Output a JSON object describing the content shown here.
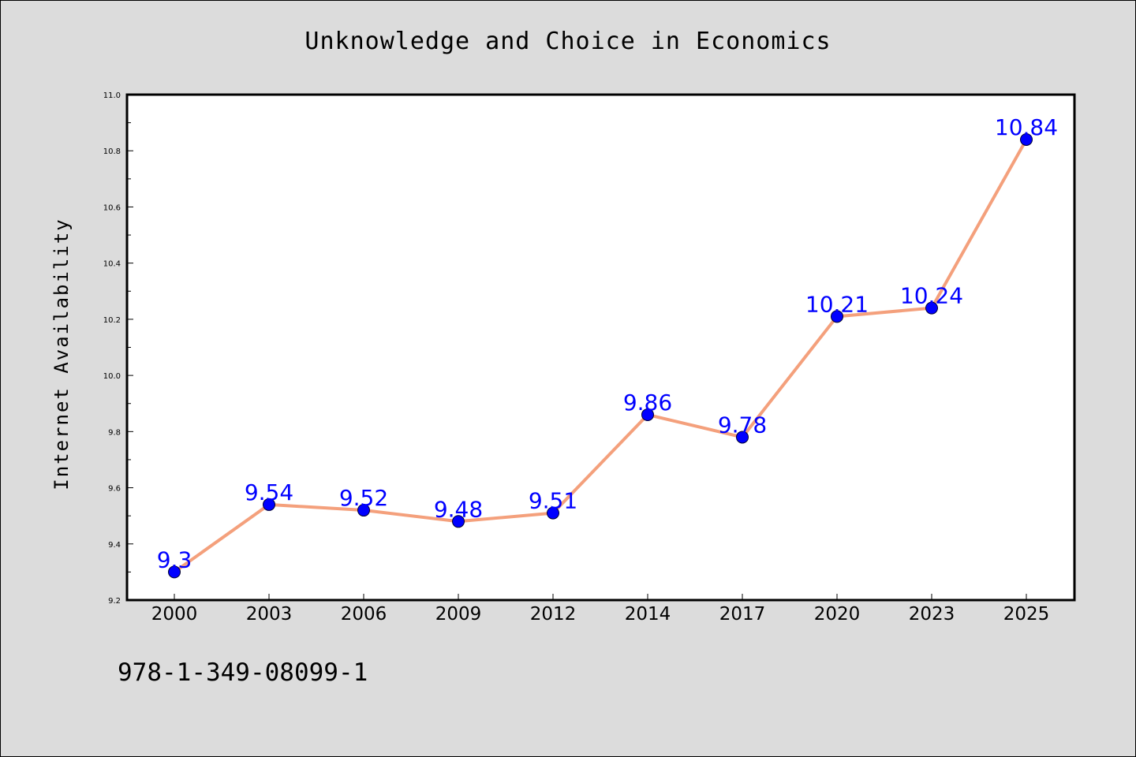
{
  "page": {
    "background": "#dcdcdc",
    "isbn": "978-1-349-08099-1"
  },
  "chart_data": {
    "type": "line",
    "title": "Unknowledge and Choice in Economics",
    "xlabel": "",
    "ylabel": "Internet Availability",
    "categories": [
      "2000",
      "2003",
      "2006",
      "2009",
      "2012",
      "2014",
      "2017",
      "2020",
      "2023",
      "2025"
    ],
    "series": [
      {
        "values": [
          9.3,
          9.54,
          9.52,
          9.48,
          9.51,
          9.86,
          9.78,
          10.21,
          10.24,
          10.84
        ],
        "data_labels": [
          "9.3",
          "9.54",
          "9.52",
          "9.48",
          "9.51",
          "9.86",
          "9.78",
          "10.21",
          "10.24",
          "10.84"
        ],
        "line_color": "#f4a07c",
        "marker_color": "#0000ff",
        "label_color": "#0000ff"
      }
    ],
    "ylim": [
      9.2,
      11.0
    ],
    "yticks": [
      "9.2",
      "9.4",
      "9.6",
      "9.8",
      "10.0",
      "10.2",
      "10.4",
      "10.6",
      "10.8",
      "11.0"
    ],
    "grid": false,
    "legend": "none",
    "plot_background": "#ffffff"
  }
}
